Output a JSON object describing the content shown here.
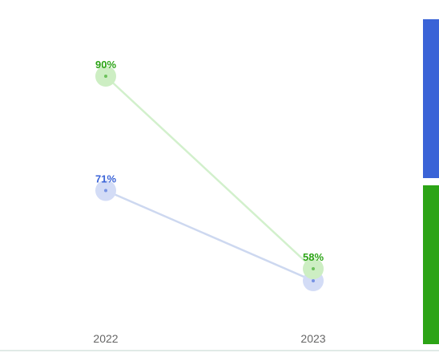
{
  "chart_data": {
    "type": "line",
    "categories": [
      "2022",
      "2023"
    ],
    "series": [
      {
        "values": [
          71,
          56
        ],
        "labels": [
          "71%",
          ""
        ],
        "color": "#3a63d7",
        "line_color": "#cdd8f0",
        "marker_color": "#d3dcf6"
      },
      {
        "values": [
          90,
          58
        ],
        "labels": [
          "90%",
          "58%"
        ],
        "color": "#2ca416",
        "line_color": "#d2f0cc",
        "marker_color": "#cdeec3"
      }
    ],
    "ylim": [
      50,
      100
    ],
    "grid": false,
    "legend": "right"
  }
}
